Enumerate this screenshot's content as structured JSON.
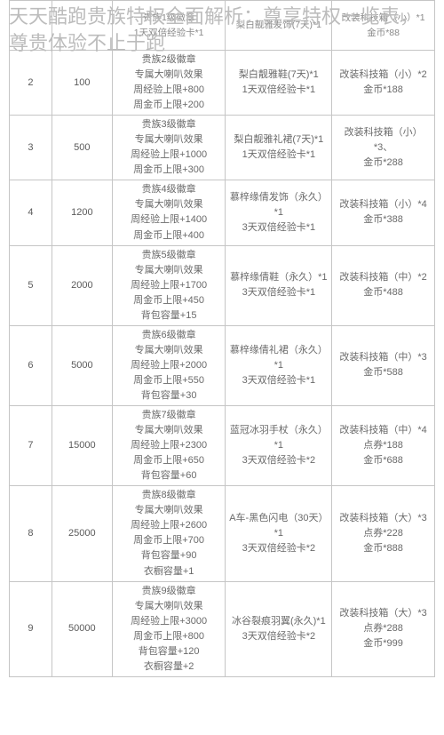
{
  "page": {
    "title": "天天酷跑贵族特权全面解析：尊享特权一览表，尊贵体验不止于跑"
  },
  "table": {
    "header": {
      "col1": "",
      "col2": "",
      "col3": "贵族1级徽章\n1天双倍经验卡*1",
      "col4": "梨白靓雅发饰(7天)*1\n",
      "col5": "改装科技箱（小）*1\n金币*88"
    },
    "rows": [
      {
        "level": "2",
        "amount": "100",
        "privilege": "贵族2级徽章\n专属大喇叭效果\n周经验上限+800\n周金币上限+200",
        "reward1": "梨白靓雅鞋(7天)*1\n1天双倍经验卡*1",
        "reward2": "改装科技箱（小）*2\n金币*188"
      },
      {
        "level": "3",
        "amount": "500",
        "privilege": "贵族3级徽章\n专属大喇叭效果\n周经验上限+1000\n周金币上限+300",
        "reward1": "梨白靓雅礼裙(7天)*1\n1天双倍经验卡*1",
        "reward2": "改装科技箱（小）*3、\n金币*288"
      },
      {
        "level": "4",
        "amount": "1200",
        "privilege": "贵族4级徽章\n专属大喇叭效果\n周经验上限+1400\n周金币上限+400",
        "reward1": "慕梓缘倩发饰（永久）*1\n3天双倍经验卡*1",
        "reward2": "改装科技箱（小）*4\n金币*388"
      },
      {
        "level": "5",
        "amount": "2000",
        "privilege": "贵族5级徽章\n专属大喇叭效果\n周经验上限+1700\n周金币上限+450\n背包容量+15",
        "reward1": "慕梓缘倩鞋（永久）*1\n3天双倍经验卡*1",
        "reward2": "改装科技箱（中）*2\n金币*488"
      },
      {
        "level": "6",
        "amount": "5000",
        "privilege": "贵族6级徽章\n专属大喇叭效果\n周经验上限+2000\n周金币上限+550\n背包容量+30",
        "reward1": "慕梓缘倩礼裙（永久）*1\n3天双倍经验卡*1",
        "reward2": "改装科技箱（中）*3\n金币*588"
      },
      {
        "level": "7",
        "amount": "15000",
        "privilege": "贵族7级徽章\n专属大喇叭效果\n周经验上限+2300\n周金币上限+650\n背包容量+60",
        "reward1": "蓝冠冰羽手杖（永久）*1\n3天双倍经验卡*2",
        "reward2": "改装科技箱（中）*4\n点券*188\n金币*688"
      },
      {
        "level": "8",
        "amount": "25000",
        "privilege": "贵族8级徽章\n专属大喇叭效果\n周经验上限+2600\n周金币上限+700\n背包容量+90\n衣橱容量+1",
        "reward1": "A车-黑色闪电（30天）*1\n3天双倍经验卡*2",
        "reward2": "改装科技箱（大）*3\n点券*228\n金币*888"
      },
      {
        "level": "9",
        "amount": "50000",
        "privilege": "贵族9级徽章\n专属大喇叭效果\n周经验上限+3000\n周金币上限+800\n背包容量+120\n衣橱容量+2",
        "reward1": "冰谷裂痕羽翼(永久)*1\n3天双倍经验卡*2",
        "reward2": "改装科技箱（大）*3\n点券*288\n金币*999"
      }
    ]
  }
}
